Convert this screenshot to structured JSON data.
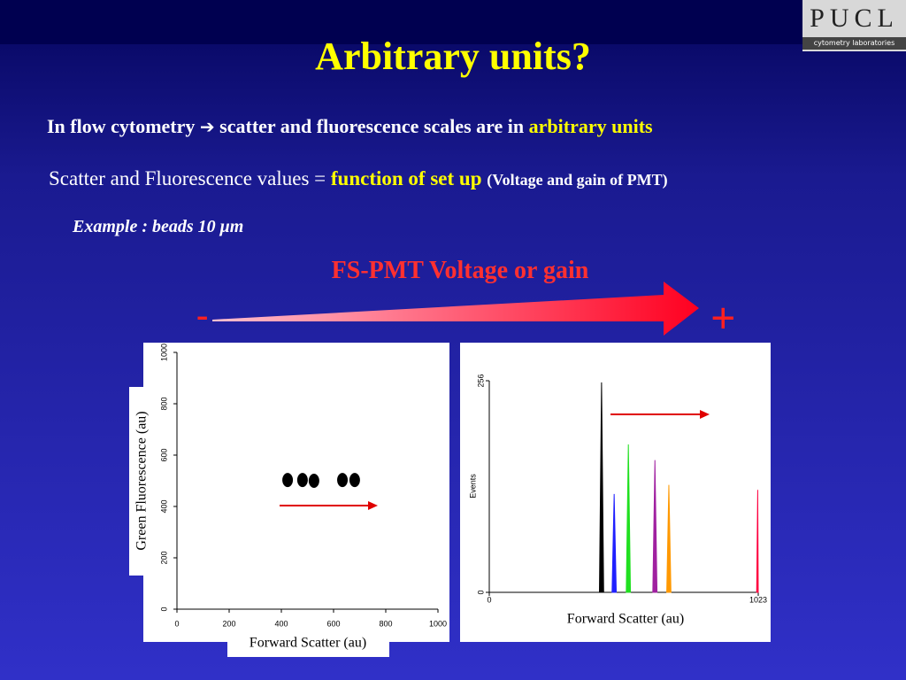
{
  "title": "Arbitrary units?",
  "line1": {
    "text": "In flow cytometry",
    "arrow": "➔",
    "rest": "scatter and fluorescence scales are in",
    "highlight": "arbitrary units"
  },
  "line2": {
    "text": "Scatter and Fluorescence values =",
    "highlight": "function of set up",
    "note": "(Voltage and gain of PMT)"
  },
  "example": "Example : beads 10 μm",
  "gain": {
    "label": "FS-PMT Voltage or gain",
    "minus": "-",
    "plus": "+"
  },
  "logo": {
    "name": "PUCL",
    "sub": "cytometry laboratories"
  },
  "chart_data": [
    {
      "type": "scatter",
      "x_label": "Forward Scatter (au)",
      "y_label": "Green Fluorescence (au)",
      "x": [
        424,
        481,
        525,
        634,
        681
      ],
      "values": [
        503,
        503,
        500,
        503,
        503
      ],
      "color": "#000000",
      "xlim": [
        0,
        1000
      ],
      "xticks": [
        0,
        200,
        400,
        600,
        800,
        1000
      ],
      "ylim": [
        0,
        1000
      ],
      "yticks": [
        0,
        200,
        400,
        600,
        800,
        1000
      ]
    },
    {
      "type": "line",
      "x_label": "Forward Scatter (au)",
      "y_label": "Events",
      "xlim": [
        0,
        1023
      ],
      "xticks": [
        0,
        1023
      ],
      "ylim": [
        0,
        256
      ],
      "yticks": [
        0,
        256
      ],
      "series": [
        {
          "color": "#000000",
          "x": [
            419,
            427,
            435
          ],
          "values": [
            0,
            254,
            0
          ]
        },
        {
          "color": "#2020ff",
          "x": [
            467,
            475,
            483
          ],
          "values": [
            0,
            119,
            0
          ]
        },
        {
          "color": "#20e020",
          "x": [
            521,
            529,
            537
          ],
          "values": [
            0,
            179,
            0
          ]
        },
        {
          "color": "#a020a0",
          "x": [
            622,
            630,
            638
          ],
          "values": [
            0,
            160,
            0
          ]
        },
        {
          "color": "#ff9900",
          "x": [
            675,
            683,
            691
          ],
          "values": [
            0,
            130,
            0
          ]
        },
        {
          "color": "#ff0040",
          "x": [
            1017,
            1021,
            1023
          ],
          "values": [
            0,
            124,
            0
          ]
        }
      ]
    }
  ]
}
